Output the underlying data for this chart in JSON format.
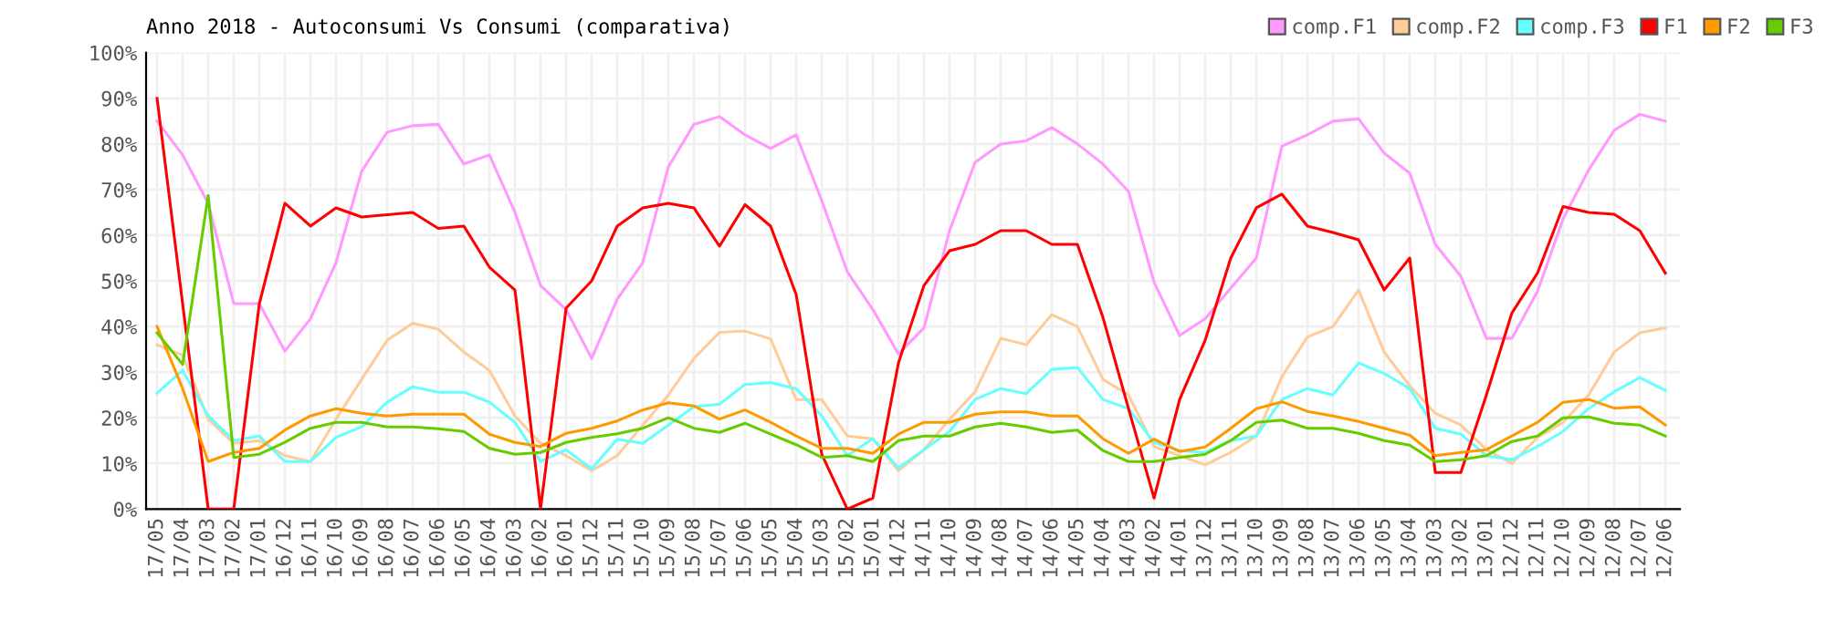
{
  "chart_data": {
    "type": "line",
    "title": "Anno 2018 - Autoconsumi Vs Consumi (comparativa)",
    "categories": [
      "17/05",
      "17/04",
      "17/03",
      "17/02",
      "17/01",
      "16/12",
      "16/11",
      "16/10",
      "16/09",
      "16/08",
      "16/07",
      "16/06",
      "16/05",
      "16/04",
      "16/03",
      "16/02",
      "16/01",
      "15/12",
      "15/11",
      "15/10",
      "15/09",
      "15/08",
      "15/07",
      "15/06",
      "15/05",
      "15/04",
      "15/03",
      "15/02",
      "15/01",
      "14/12",
      "14/11",
      "14/10",
      "14/09",
      "14/08",
      "14/07",
      "14/06",
      "14/05",
      "14/04",
      "14/03",
      "14/02",
      "14/01",
      "13/12",
      "13/11",
      "13/10",
      "13/09",
      "13/08",
      "13/07",
      "13/06",
      "13/05",
      "13/04",
      "13/03",
      "13/02",
      "13/01",
      "12/12",
      "12/11",
      "12/10",
      "12/09",
      "12/08",
      "12/07",
      "12/06"
    ],
    "series": [
      {
        "name": "comp.F1",
        "color": "#ff99ff",
        "values": [
          85,
          77.6,
          67,
          45,
          45,
          34.6,
          41.7,
          54,
          74,
          82.6,
          84,
          84.3,
          75.6,
          77.6,
          65,
          49,
          43.7,
          33,
          46,
          54,
          75,
          84.3,
          86,
          82,
          79,
          82,
          67.6,
          52,
          43.7,
          34,
          39.7,
          61,
          76,
          80,
          80.7,
          83.6,
          80,
          75.6,
          69.6,
          49.7,
          38,
          41.7,
          48.4,
          55,
          79.5,
          82,
          85,
          85.5,
          78,
          73.6,
          58,
          51,
          37.4,
          37.4,
          47.7,
          63.6,
          74.3,
          83,
          86.5,
          85
        ]
      },
      {
        "name": "comp.F2",
        "color": "#ffcc99",
        "values": [
          36,
          33.7,
          19.7,
          14.4,
          15,
          11.7,
          10.4,
          19.7,
          28.4,
          37,
          40.7,
          39.4,
          34.4,
          30.4,
          20.4,
          14.4,
          11.7,
          8.4,
          11.7,
          18.4,
          25,
          33,
          38.7,
          39,
          37.3,
          24,
          24,
          16,
          15.4,
          8.4,
          13,
          19.7,
          25.7,
          37.4,
          36,
          42.6,
          40,
          28.4,
          25,
          13.7,
          11.7,
          9.7,
          12.4,
          16,
          29,
          37.7,
          40,
          48,
          34.4,
          27,
          21,
          18.4,
          13,
          10,
          15.7,
          19,
          25,
          34.4,
          38.6,
          39.7
        ]
      },
      {
        "name": "comp.F3",
        "color": "#66ffff",
        "values": [
          25.4,
          30.4,
          20.4,
          15,
          16,
          10.4,
          10.4,
          15.7,
          18,
          23.4,
          26.8,
          25.6,
          25.6,
          23.4,
          19,
          10.4,
          13,
          8.8,
          15.3,
          14.4,
          18.4,
          22.4,
          23,
          27.3,
          27.7,
          26.4,
          20.4,
          11.7,
          15.4,
          9,
          13,
          17,
          24,
          26.4,
          25.3,
          30.6,
          31,
          24,
          22,
          14.6,
          12.8,
          12.4,
          15,
          16,
          24,
          26.4,
          25,
          32,
          29.7,
          26.4,
          17.7,
          16.4,
          11.7,
          10.8,
          13.7,
          17,
          22,
          25.7,
          28.8,
          26
        ]
      },
      {
        "name": "F1",
        "color": "#ff0000",
        "values": [
          90,
          45,
          0,
          0,
          45,
          67,
          62,
          66,
          64,
          64.5,
          65,
          61.5,
          62,
          53,
          48,
          0,
          44,
          50,
          62,
          66,
          67,
          66,
          57.6,
          66.7,
          62,
          47,
          12,
          0,
          2.4,
          32,
          49,
          56.6,
          58,
          61,
          61,
          58,
          58,
          42,
          22,
          2.4,
          24,
          37,
          55,
          66,
          69,
          62,
          60.6,
          59,
          48,
          55,
          8,
          8,
          25,
          43,
          51.7,
          66.3,
          65,
          64.6,
          61,
          51.7
        ]
      },
      {
        "name": "F2",
        "color": "#ff9900",
        "values": [
          40,
          26.4,
          10.4,
          12.4,
          13.3,
          17.3,
          20.4,
          22,
          21,
          20.4,
          20.8,
          20.8,
          20.8,
          16.4,
          14.6,
          13.7,
          16.6,
          17.7,
          19.3,
          21.7,
          23.3,
          22.6,
          19.7,
          21.7,
          19,
          16,
          13.3,
          13.3,
          12.2,
          16.4,
          19,
          19,
          20.8,
          21.3,
          21.3,
          20.4,
          20.4,
          15.4,
          12.2,
          15.3,
          12.6,
          13.6,
          17.7,
          22,
          23.5,
          21.4,
          20.4,
          19.2,
          17.7,
          16.2,
          11.7,
          12.4,
          13,
          16,
          19,
          23.4,
          24,
          22.1,
          22.4,
          18.4
        ]
      },
      {
        "name": "F3",
        "color": "#66cc00",
        "values": [
          38.6,
          31.7,
          68.7,
          11.3,
          12,
          14.6,
          17.7,
          19,
          19,
          18,
          18,
          17.6,
          17,
          13.3,
          12,
          12.4,
          14.6,
          15.7,
          16.5,
          17.7,
          20,
          17.7,
          16.8,
          18.8,
          16.4,
          14.1,
          11.3,
          11.7,
          10.4,
          15,
          16,
          16,
          18,
          18.8,
          18,
          16.8,
          17.3,
          12.8,
          10.4,
          10.4,
          11.3,
          12,
          15,
          19,
          19.5,
          17.7,
          17.7,
          16.6,
          15,
          14,
          10.4,
          10.8,
          11.7,
          14.8,
          16,
          20,
          20.2,
          18.8,
          18.4,
          16
        ]
      }
    ],
    "ylim": [
      0,
      100
    ],
    "yticks": [
      {
        "value": 0,
        "label": "0%"
      },
      {
        "value": 10,
        "label": "10%"
      },
      {
        "value": 20,
        "label": "20%"
      },
      {
        "value": 30,
        "label": "30%"
      },
      {
        "value": 40,
        "label": "40%"
      },
      {
        "value": 50,
        "label": "50%"
      },
      {
        "value": 60,
        "label": "60%"
      },
      {
        "value": 70,
        "label": "70%"
      },
      {
        "value": 80,
        "label": "80%"
      },
      {
        "value": 90,
        "label": "90%"
      },
      {
        "value": 100,
        "label": "100%"
      }
    ],
    "grid": true,
    "legend": "top right",
    "marker": "none",
    "line_style": "solid"
  }
}
